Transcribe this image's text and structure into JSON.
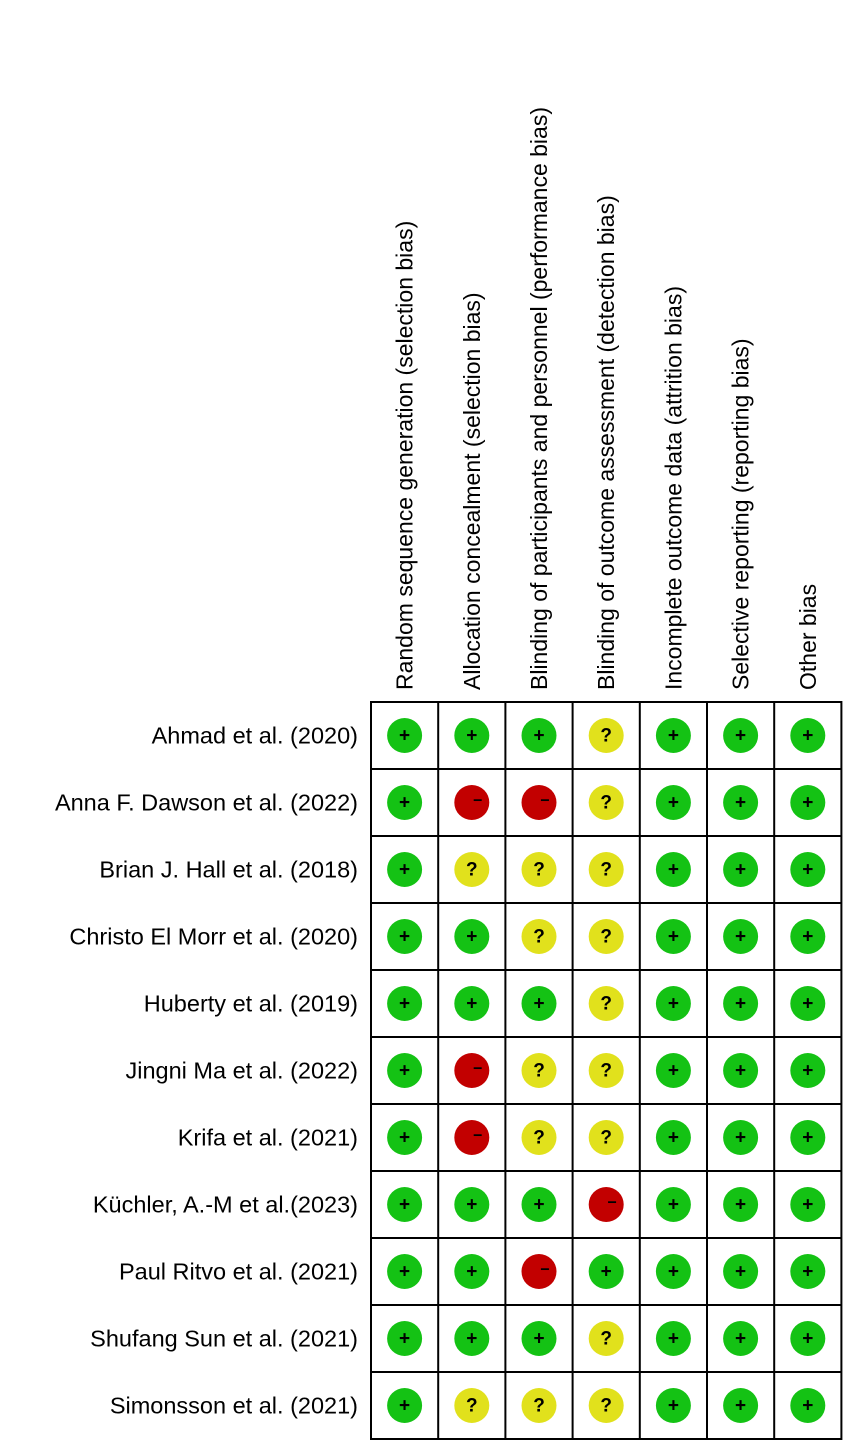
{
  "chart_data": {
    "type": "table",
    "columns": [
      "Random sequence generation (selection bias)",
      "Allocation concealment (selection bias)",
      "Blinding of participants and personnel (performance bias)",
      "Blinding of outcome assessment (detection bias)",
      "Incomplete outcome data (attrition bias)",
      "Selective reporting (reporting bias)",
      "Other bias"
    ],
    "rows": [
      {
        "study": "Ahmad et al. (2020)",
        "ratings": [
          "low",
          "low",
          "low",
          "unclear",
          "low",
          "low",
          "low"
        ]
      },
      {
        "study": "Anna F. Dawson et al. (2022)",
        "ratings": [
          "low",
          "high",
          "high",
          "unclear",
          "low",
          "low",
          "low"
        ]
      },
      {
        "study": "Brian J. Hall et al. (2018)",
        "ratings": [
          "low",
          "unclear",
          "unclear",
          "unclear",
          "low",
          "low",
          "low"
        ]
      },
      {
        "study": "Christo El Morr et al. (2020)",
        "ratings": [
          "low",
          "low",
          "unclear",
          "unclear",
          "low",
          "low",
          "low"
        ]
      },
      {
        "study": "Huberty et al. (2019)",
        "ratings": [
          "low",
          "low",
          "low",
          "unclear",
          "low",
          "low",
          "low"
        ]
      },
      {
        "study": "Jingni Ma et al. (2022)",
        "ratings": [
          "low",
          "high",
          "unclear",
          "unclear",
          "low",
          "low",
          "low"
        ]
      },
      {
        "study": "Krifa et al. (2021)",
        "ratings": [
          "low",
          "high",
          "unclear",
          "unclear",
          "low",
          "low",
          "low"
        ]
      },
      {
        "study": "Küchler, A.-M et al.(2023)",
        "ratings": [
          "low",
          "low",
          "low",
          "high",
          "low",
          "low",
          "low"
        ]
      },
      {
        "study": "Paul Ritvo et al. (2021)",
        "ratings": [
          "low",
          "low",
          "high",
          "low",
          "low",
          "low",
          "low"
        ]
      },
      {
        "study": "Shufang Sun et al. (2021)",
        "ratings": [
          "low",
          "low",
          "low",
          "unclear",
          "low",
          "low",
          "low"
        ]
      },
      {
        "study": "Simonsson et al. (2021)",
        "ratings": [
          "low",
          "unclear",
          "unclear",
          "unclear",
          "low",
          "low",
          "low"
        ]
      }
    ],
    "legend": {
      "low": {
        "symbol": "+",
        "color": "#14c214"
      },
      "unclear": {
        "symbol": "?",
        "color": "#e1e11c"
      },
      "high": {
        "symbol": "−",
        "color": "#c20000"
      }
    }
  }
}
